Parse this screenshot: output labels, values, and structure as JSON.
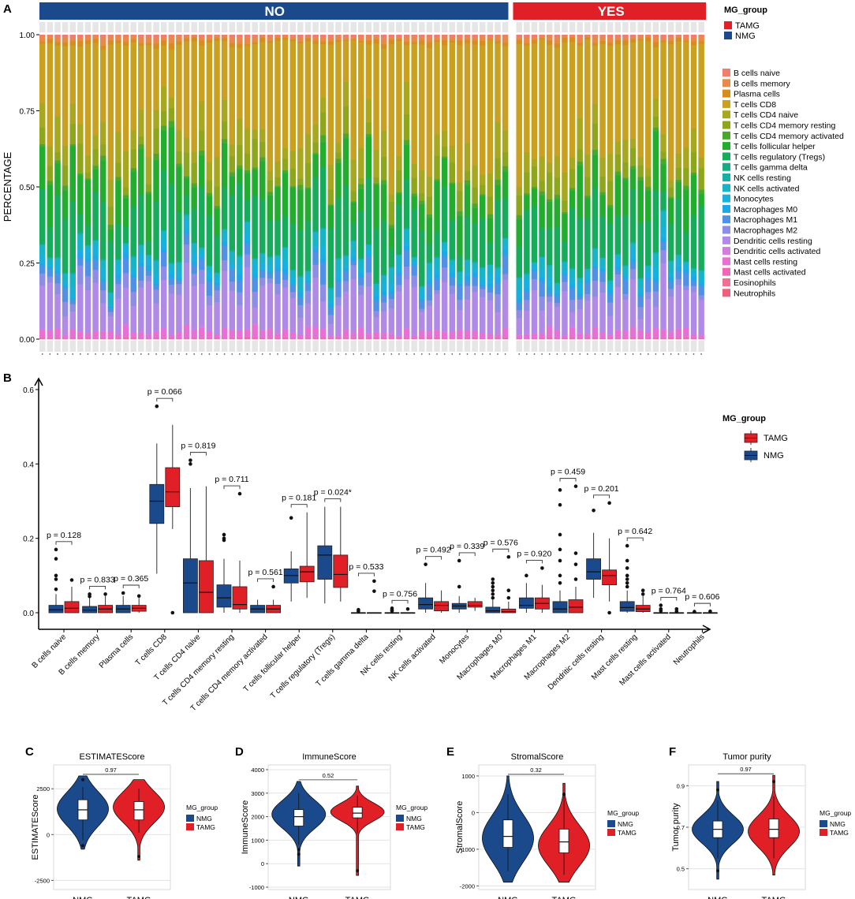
{
  "panel_labels": [
    "A",
    "B",
    "C",
    "D",
    "E",
    "F"
  ],
  "colors": {
    "nmg": "#1b4a8c",
    "tamg": "#e11f26",
    "no_bar": "#1b4a8c",
    "yes_bar": "#e11f26"
  },
  "chart_data": [
    {
      "panel": "A",
      "type": "bar",
      "stacked": true,
      "title": "",
      "ylabel": "PERCENTAGE",
      "yticks": [
        "0.00",
        "0.25",
        "0.50",
        "0.75",
        "1.00"
      ],
      "ylim": [
        0,
        1
      ],
      "groups": [
        {
          "name": "NO",
          "n_samples": 62
        },
        {
          "name": "YES",
          "n_samples": 25
        }
      ],
      "mg_legend_title": "MG_group",
      "mg_legend": [
        {
          "name": "TAMG",
          "color": "#e11f26"
        },
        {
          "name": "NMG",
          "color": "#1b4a8c"
        }
      ],
      "cell_types": [
        {
          "name": "B cells naive",
          "color": "#f07d6e"
        },
        {
          "name": "B cells memory",
          "color": "#e8894a"
        },
        {
          "name": "Plasma cells",
          "color": "#d88c1b"
        },
        {
          "name": "T cells CD8",
          "color": "#c9a020"
        },
        {
          "name": "T cells CD4 naive",
          "color": "#a8a820"
        },
        {
          "name": "T cells CD4 memory resting",
          "color": "#8da61c"
        },
        {
          "name": "T cells CD4 memory activated",
          "color": "#49a82b"
        },
        {
          "name": "T cells follicular helper",
          "color": "#22ad2e"
        },
        {
          "name": "T cells regulatory (Tregs)",
          "color": "#17ac5c"
        },
        {
          "name": "T cells gamma delta",
          "color": "#16ab80"
        },
        {
          "name": "NK cells resting",
          "color": "#17b0a7"
        },
        {
          "name": "NK cells activated",
          "color": "#16b4c4"
        },
        {
          "name": "Monocytes",
          "color": "#18b0dc"
        },
        {
          "name": "Macrophages M0",
          "color": "#1fa6ea"
        },
        {
          "name": "Macrophages M1",
          "color": "#4f91e6"
        },
        {
          "name": "Macrophages M2",
          "color": "#8d8de6"
        },
        {
          "name": "Dendritic cells resting",
          "color": "#b18ae8"
        },
        {
          "name": "Dendritic cells activated",
          "color": "#d47ddf"
        },
        {
          "name": "Mast cells resting",
          "color": "#e86fd4"
        },
        {
          "name": "Mast cells activated",
          "color": "#f068b4"
        },
        {
          "name": "Eosinophils",
          "color": "#f2708f"
        },
        {
          "name": "Neutrophils",
          "color": "#f0607b"
        }
      ]
    },
    {
      "panel": "B",
      "type": "box",
      "ylim": [
        0,
        0.6
      ],
      "yticks": [
        "0.0",
        "0.2",
        "0.4",
        "0.6"
      ],
      "legend_title": "MG_group",
      "legend": [
        "TAMG",
        "NMG"
      ],
      "categories": [
        {
          "name": "B cells naive",
          "p": "p = 0.128",
          "NMG": {
            "q1": 0.0,
            "med": 0.008,
            "q3": 0.02,
            "lo": 0.0,
            "hi": 0.05,
            "out": [
              0.063,
              0.09,
              0.1,
              0.145,
              0.17
            ]
          },
          "TAMG": {
            "q1": 0.0,
            "med": 0.012,
            "q3": 0.03,
            "lo": 0.0,
            "hi": 0.07,
            "out": [
              0.088
            ]
          }
        },
        {
          "name": "B cells memory",
          "p": "p = 0.833",
          "NMG": {
            "q1": 0.0,
            "med": 0.007,
            "q3": 0.017,
            "lo": 0.0,
            "hi": 0.04,
            "out": [
              0.044,
              0.05
            ]
          },
          "TAMG": {
            "q1": 0.0,
            "med": 0.01,
            "q3": 0.02,
            "lo": 0.0,
            "hi": 0.045,
            "out": [
              0.05
            ]
          }
        },
        {
          "name": "Plasma cells",
          "p": "p = 0.365",
          "NMG": {
            "q1": 0.0,
            "med": 0.01,
            "q3": 0.02,
            "lo": 0.0,
            "hi": 0.045,
            "out": [
              0.053
            ]
          },
          "TAMG": {
            "q1": 0.004,
            "med": 0.012,
            "q3": 0.02,
            "lo": 0.0,
            "hi": 0.04,
            "out": [
              0.045
            ]
          }
        },
        {
          "name": "T cells CD8",
          "p": "p = 0.066",
          "NMG": {
            "q1": 0.24,
            "med": 0.3,
            "q3": 0.345,
            "lo": 0.105,
            "hi": 0.455,
            "out": [
              0.555
            ]
          },
          "TAMG": {
            "q1": 0.285,
            "med": 0.325,
            "q3": 0.39,
            "lo": 0.225,
            "hi": 0.505,
            "out": [
              0.0
            ]
          }
        },
        {
          "name": "T cells CD4 naive",
          "p": "p = 0.819",
          "NMG": {
            "q1": 0.0,
            "med": 0.08,
            "q3": 0.145,
            "lo": 0.0,
            "hi": 0.335,
            "out": [
              0.4,
              0.41
            ]
          },
          "TAMG": {
            "q1": 0.0,
            "med": 0.055,
            "q3": 0.14,
            "lo": 0.0,
            "hi": 0.34,
            "out": []
          }
        },
        {
          "name": "T cells CD4 memory resting",
          "p": "p = 0.711",
          "NMG": {
            "q1": 0.015,
            "med": 0.04,
            "q3": 0.075,
            "lo": 0.0,
            "hi": 0.145,
            "out": [
              0.195,
              0.2,
              0.21
            ]
          },
          "TAMG": {
            "q1": 0.01,
            "med": 0.022,
            "q3": 0.07,
            "lo": 0.0,
            "hi": 0.14,
            "out": [
              0.32
            ]
          }
        },
        {
          "name": "T cells CD4 memory activated",
          "p": "p = 0.561",
          "NMG": {
            "q1": 0.0,
            "med": 0.01,
            "q3": 0.02,
            "lo": 0.0,
            "hi": 0.035,
            "out": []
          },
          "TAMG": {
            "q1": 0.0,
            "med": 0.01,
            "q3": 0.02,
            "lo": 0.0,
            "hi": 0.035,
            "out": [
              0.07
            ]
          }
        },
        {
          "name": "T cells follicular helper",
          "p": "p = 0.181",
          "NMG": {
            "q1": 0.08,
            "med": 0.1,
            "q3": 0.118,
            "lo": 0.03,
            "hi": 0.165,
            "out": [
              0.255
            ]
          },
          "TAMG": {
            "q1": 0.083,
            "med": 0.11,
            "q3": 0.125,
            "lo": 0.04,
            "hi": 0.27,
            "out": []
          }
        },
        {
          "name": "T cells regulatory (Tregs)",
          "p": "p = 0.024*",
          "NMG": {
            "q1": 0.09,
            "med": 0.155,
            "q3": 0.18,
            "lo": 0.025,
            "hi": 0.285,
            "out": []
          },
          "TAMG": {
            "q1": 0.068,
            "med": 0.103,
            "q3": 0.155,
            "lo": 0.03,
            "hi": 0.285,
            "out": []
          }
        },
        {
          "name": "T cells gamma delta",
          "p": "p = 0.533",
          "NMG": {
            "q1": 0.0,
            "med": 0.0,
            "q3": 0.0,
            "lo": 0.0,
            "hi": 0.0,
            "out": [
              0.004,
              0.008
            ]
          },
          "TAMG": {
            "q1": 0.0,
            "med": 0.0,
            "q3": 0.0,
            "lo": 0.0,
            "hi": 0.0,
            "out": [
              0.058,
              0.085
            ]
          }
        },
        {
          "name": "NK cells resting",
          "p": "p = 0.756",
          "NMG": {
            "q1": 0.0,
            "med": 0.0,
            "q3": 0.0,
            "lo": 0.0,
            "hi": 0.0,
            "out": [
              0.005,
              0.008,
              0.012
            ]
          },
          "TAMG": {
            "q1": 0.0,
            "med": 0.0,
            "q3": 0.0,
            "lo": 0.0,
            "hi": 0.0,
            "out": [
              0.01
            ]
          }
        },
        {
          "name": "NK cells activated",
          "p": "p = 0.492",
          "NMG": {
            "q1": 0.01,
            "med": 0.022,
            "q3": 0.04,
            "lo": 0.0,
            "hi": 0.08,
            "out": [
              0.13
            ]
          },
          "TAMG": {
            "q1": 0.005,
            "med": 0.02,
            "q3": 0.03,
            "lo": 0.0,
            "hi": 0.06,
            "out": []
          }
        },
        {
          "name": "Monocytes",
          "p": "p = 0.339",
          "NMG": {
            "q1": 0.01,
            "med": 0.018,
            "q3": 0.025,
            "lo": 0.0,
            "hi": 0.045,
            "out": [
              0.07,
              0.14
            ]
          },
          "TAMG": {
            "q1": 0.015,
            "med": 0.02,
            "q3": 0.03,
            "lo": 0.005,
            "hi": 0.04,
            "out": []
          }
        },
        {
          "name": "Macrophages M0",
          "p": "p = 0.576",
          "NMG": {
            "q1": 0.0,
            "med": 0.005,
            "q3": 0.015,
            "lo": 0.0,
            "hi": 0.035,
            "out": [
              0.04,
              0.05,
              0.06,
              0.07,
              0.08,
              0.09
            ]
          },
          "TAMG": {
            "q1": 0.0,
            "med": 0.003,
            "q3": 0.01,
            "lo": 0.0,
            "hi": 0.03,
            "out": [
              0.04,
              0.06,
              0.15
            ]
          }
        },
        {
          "name": "Macrophages M1",
          "p": "p = 0.920",
          "NMG": {
            "q1": 0.012,
            "med": 0.02,
            "q3": 0.04,
            "lo": 0.0,
            "hi": 0.08,
            "out": [
              0.1
            ]
          },
          "TAMG": {
            "q1": 0.01,
            "med": 0.025,
            "q3": 0.04,
            "lo": 0.0,
            "hi": 0.075,
            "out": [
              0.12
            ]
          }
        },
        {
          "name": "Macrophages M2",
          "p": "p = 0.459",
          "NMG": {
            "q1": 0.0,
            "med": 0.01,
            "q3": 0.03,
            "lo": 0.0,
            "hi": 0.06,
            "out": [
              0.08,
              0.1,
              0.14,
              0.17,
              0.21,
              0.29,
              0.33
            ]
          },
          "TAMG": {
            "q1": 0.0,
            "med": 0.015,
            "q3": 0.035,
            "lo": 0.0,
            "hi": 0.07,
            "out": [
              0.09,
              0.13,
              0.16,
              0.34
            ]
          }
        },
        {
          "name": "Dendritic cells resting",
          "p": "p = 0.201",
          "NMG": {
            "q1": 0.09,
            "med": 0.11,
            "q3": 0.145,
            "lo": 0.04,
            "hi": 0.215,
            "out": [
              0.275
            ]
          },
          "TAMG": {
            "q1": 0.075,
            "med": 0.1,
            "q3": 0.115,
            "lo": 0.03,
            "hi": 0.2,
            "out": [
              0.0,
              0.295
            ]
          }
        },
        {
          "name": "Mast cells resting",
          "p": "p = 0.642",
          "NMG": {
            "q1": 0.004,
            "med": 0.014,
            "q3": 0.03,
            "lo": 0.0,
            "hi": 0.06,
            "out": [
              0.07,
              0.08,
              0.09,
              0.1,
              0.12,
              0.14,
              0.18
            ]
          },
          "TAMG": {
            "q1": 0.003,
            "med": 0.01,
            "q3": 0.02,
            "lo": 0.0,
            "hi": 0.045,
            "out": [
              0.05,
              0.06
            ]
          }
        },
        {
          "name": "Mast cells activated",
          "p": "p = 0.764",
          "NMG": {
            "q1": 0.0,
            "med": 0.0,
            "q3": 0.0,
            "lo": 0.0,
            "hi": 0.0,
            "out": [
              0.005,
              0.01,
              0.02
            ]
          },
          "TAMG": {
            "q1": 0.0,
            "med": 0.0,
            "q3": 0.0,
            "lo": 0.0,
            "hi": 0.0,
            "out": [
              0.004,
              0.01
            ]
          }
        },
        {
          "name": "Neutrophils",
          "p": "p = 0.606",
          "NMG": {
            "q1": 0.0,
            "med": 0.0,
            "q3": 0.0,
            "lo": 0.0,
            "hi": 0.0,
            "out": [
              0.003
            ]
          },
          "TAMG": {
            "q1": 0.0,
            "med": 0.0,
            "q3": 0.0,
            "lo": 0.0,
            "hi": 0.0,
            "out": [
              0.004
            ]
          }
        }
      ]
    },
    {
      "panel": "C",
      "type": "violin",
      "title": "ESTIMATEScore",
      "ylabel": "ESTIMATEScore",
      "ylim": [
        -3000,
        3800
      ],
      "yticks": [
        -2500,
        0,
        2500
      ],
      "ytick_labels": [
        "-2500",
        "0",
        "2500"
      ],
      "categories": [
        "NMG",
        "TAMG"
      ],
      "p": "0.97",
      "legend_title": "MG_group",
      "legend": [
        "NMG",
        "TAMG"
      ],
      "groups": [
        {
          "name": "NMG",
          "min": -800,
          "max": 3200,
          "q1": 800,
          "med": 1350,
          "q3": 1900,
          "lo": -300,
          "hi": 2600,
          "mode": 1400,
          "out": [
            -600,
            3000
          ]
        },
        {
          "name": "TAMG",
          "min": -1400,
          "max": 3000,
          "q1": 800,
          "med": 1350,
          "q3": 1800,
          "lo": 100,
          "hi": 2500,
          "mode": 1500,
          "out": [
            -1200
          ]
        }
      ]
    },
    {
      "panel": "D",
      "type": "violin",
      "title": "ImmuneScore",
      "ylabel": "ImmuneScore",
      "ylim": [
        -1100,
        4200
      ],
      "yticks": [
        -1000,
        0,
        1000,
        2000,
        3000,
        4000
      ],
      "ytick_labels": [
        "-1000",
        "0",
        "1000",
        "2000",
        "3000",
        "4000"
      ],
      "categories": [
        "NMG",
        "TAMG"
      ],
      "p": "0.52",
      "legend_title": "MG_group",
      "legend": [
        "NMG",
        "TAMG"
      ],
      "groups": [
        {
          "name": "NMG",
          "min": -100,
          "max": 3500,
          "q1": 1600,
          "med": 2000,
          "q3": 2300,
          "lo": 800,
          "hi": 3000,
          "mode": 2100,
          "out": [
            600,
            400
          ]
        },
        {
          "name": "TAMG",
          "min": -500,
          "max": 3300,
          "q1": 1950,
          "med": 2150,
          "q3": 2400,
          "lo": 1300,
          "hi": 2900,
          "mode": 2200,
          "out": [
            -300
          ]
        }
      ]
    },
    {
      "panel": "E",
      "type": "violin",
      "title": "StromalScore",
      "ylabel": "StromalScore",
      "ylim": [
        -2100,
        1300
      ],
      "yticks": [
        -2000,
        -1000,
        0,
        1000
      ],
      "ytick_labels": [
        "-2000",
        "-1000",
        "0",
        "1000"
      ],
      "categories": [
        "NMG",
        "TAMG"
      ],
      "p": "0.32",
      "legend_title": "MG_group",
      "legend": [
        "NMG",
        "TAMG"
      ],
      "groups": [
        {
          "name": "NMG",
          "min": -1900,
          "max": 1000,
          "q1": -950,
          "med": -650,
          "q3": -200,
          "lo": -1600,
          "hi": 500,
          "mode": -700,
          "out": []
        },
        {
          "name": "TAMG",
          "min": -1900,
          "max": 800,
          "q1": -1100,
          "med": -800,
          "q3": -450,
          "lo": -1700,
          "hi": 500,
          "mode": -900,
          "out": [
            500
          ]
        }
      ]
    },
    {
      "panel": "F",
      "type": "violin",
      "title": "Tumor purity",
      "ylabel": "Tumor purity",
      "ylim": [
        0.4,
        1.0
      ],
      "yticks": [
        0.5,
        0.7,
        0.9
      ],
      "ytick_labels": [
        "0.5",
        "0.7",
        "0.9"
      ],
      "categories": [
        "NMG",
        "TAMG"
      ],
      "p": "0.97",
      "legend_title": "MG_group",
      "legend": [
        "NMG",
        "TAMG"
      ],
      "groups": [
        {
          "name": "NMG",
          "min": 0.45,
          "max": 0.92,
          "q1": 0.65,
          "med": 0.69,
          "q3": 0.73,
          "lo": 0.55,
          "hi": 0.83,
          "mode": 0.69,
          "out": [
            0.49,
            0.88
          ]
        },
        {
          "name": "TAMG",
          "min": 0.47,
          "max": 0.95,
          "q1": 0.65,
          "med": 0.69,
          "q3": 0.74,
          "lo": 0.55,
          "hi": 0.85,
          "mode": 0.68,
          "out": [
            0.92
          ]
        }
      ]
    }
  ]
}
